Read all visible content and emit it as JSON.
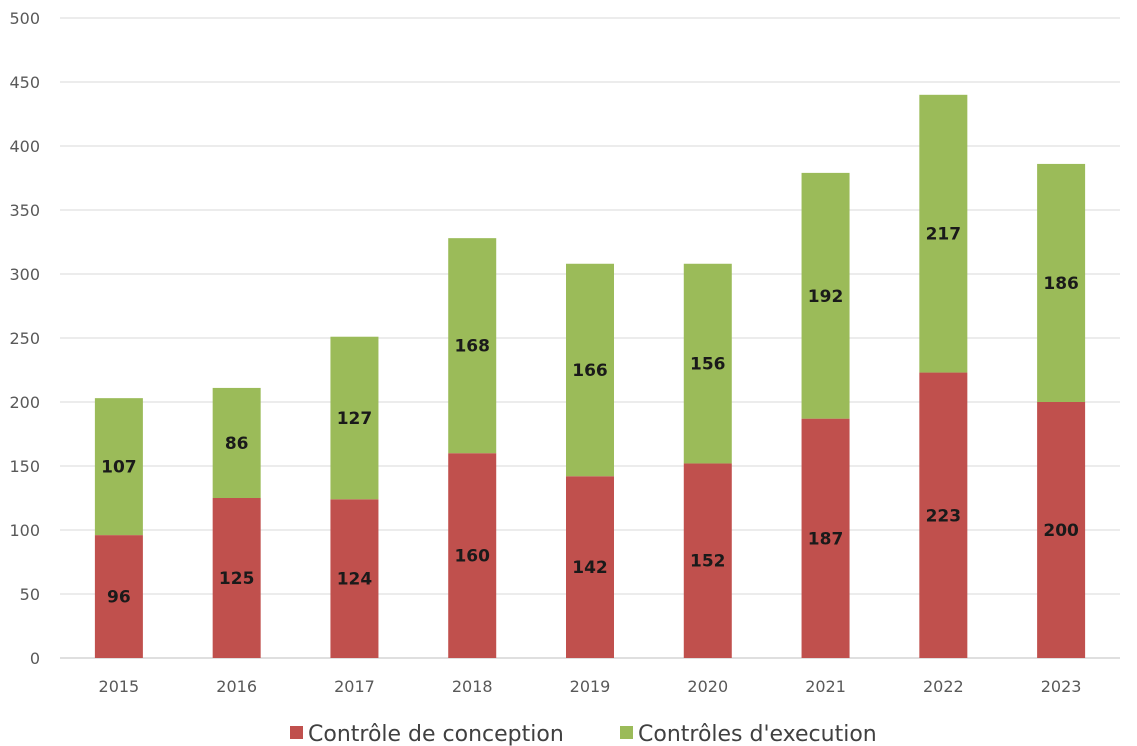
{
  "chart_data": {
    "type": "bar",
    "stacked": true,
    "title": "",
    "xlabel": "",
    "ylabel": "",
    "ylim": [
      0,
      500
    ],
    "yticks": [
      0,
      50,
      100,
      150,
      200,
      250,
      300,
      350,
      400,
      450,
      500
    ],
    "grid": true,
    "legend_position": "bottom",
    "categories": [
      "2015",
      "2016",
      "2017",
      "2018",
      "2019",
      "2020",
      "2021",
      "2022",
      "2023"
    ],
    "series": [
      {
        "name": "Contrôle de conception",
        "color": "#c0504d",
        "values": [
          96,
          125,
          124,
          160,
          142,
          152,
          187,
          223,
          200
        ]
      },
      {
        "name": "Contrôles d'execution",
        "color": "#9bbb59",
        "values": [
          107,
          86,
          127,
          168,
          166,
          156,
          192,
          217,
          186
        ]
      }
    ]
  }
}
